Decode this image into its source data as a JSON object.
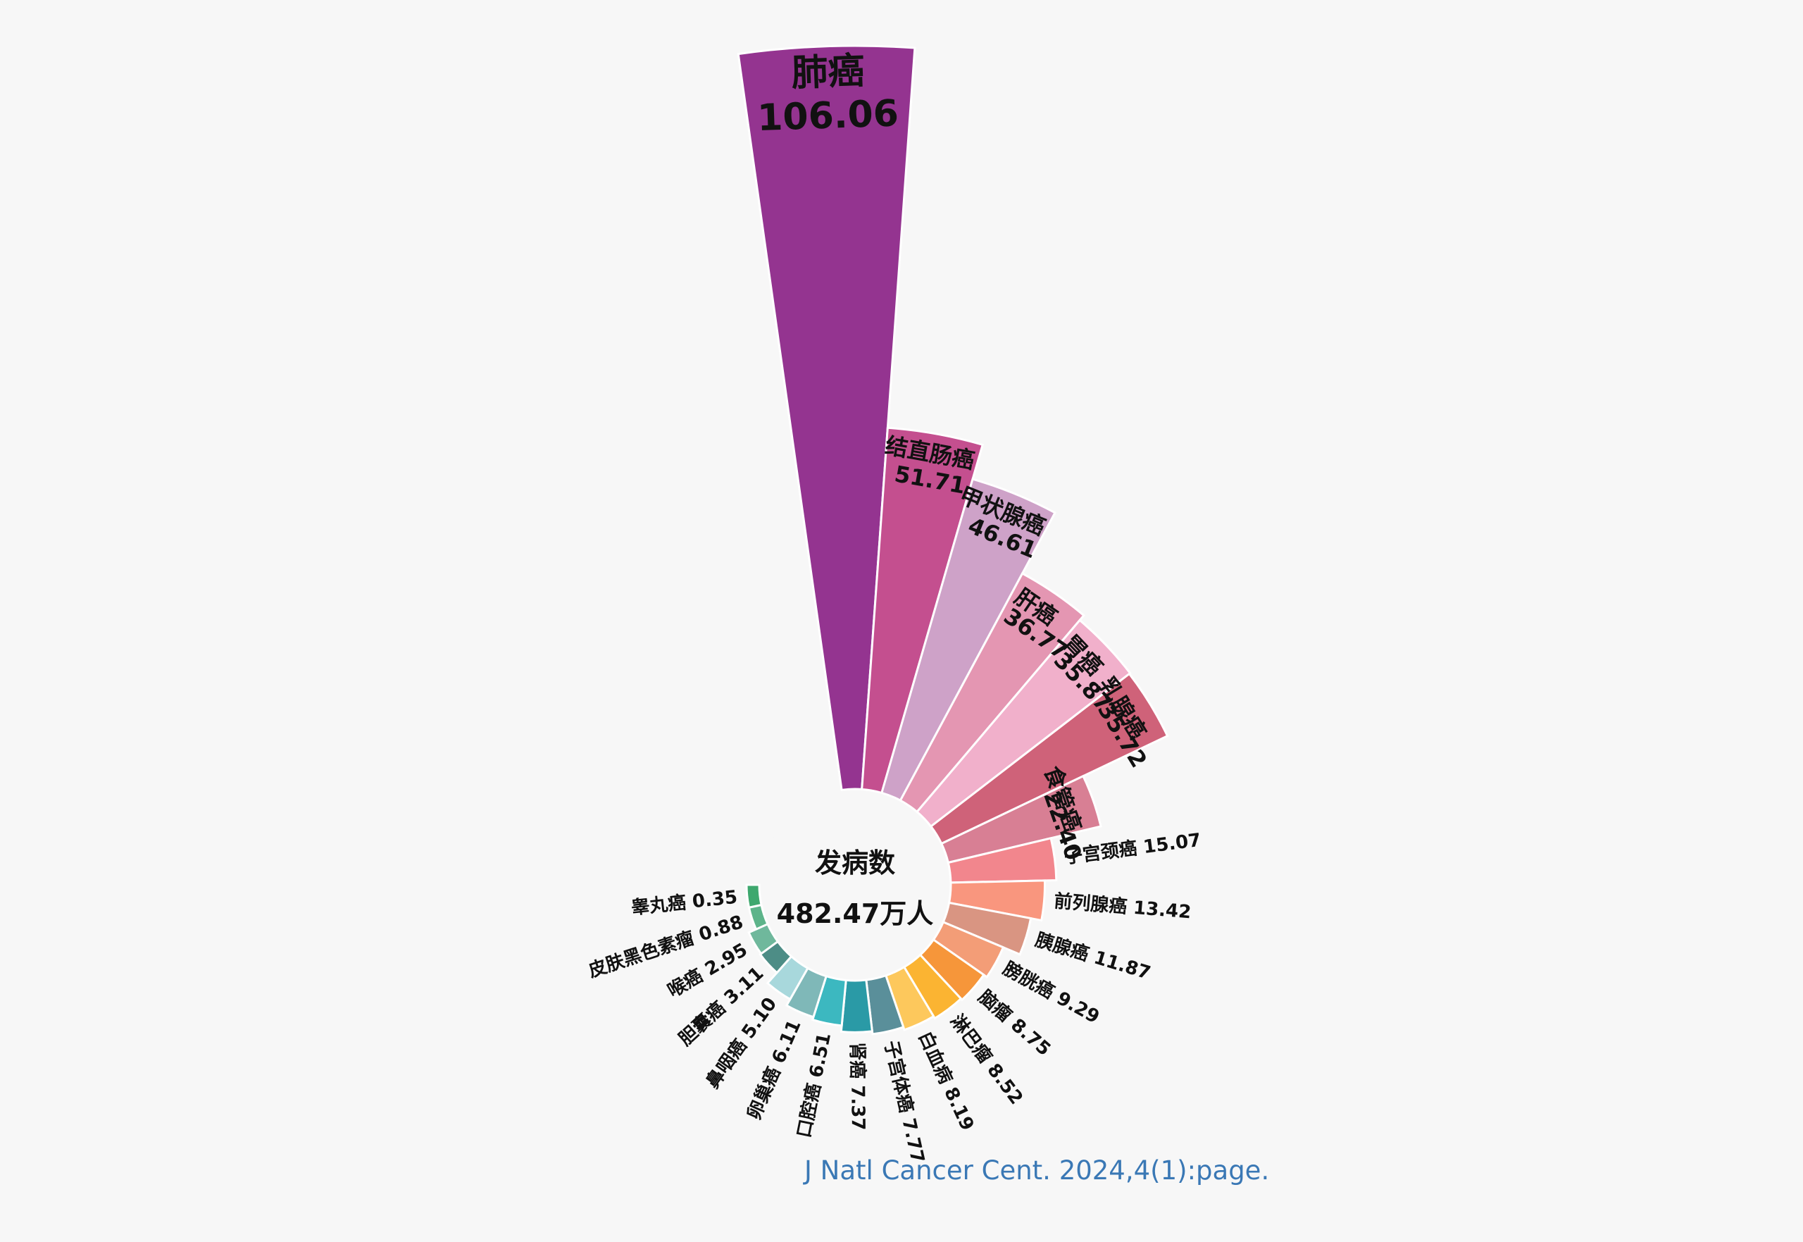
{
  "chart_data": {
    "type": "nightingale_rose",
    "center_label": "发病数",
    "center_value": "482.47万人",
    "unit": "万人",
    "series": [
      {
        "name": "肺癌",
        "value": 106.06,
        "value_label": "106.06",
        "color": "#943490"
      },
      {
        "name": "结直肠癌",
        "value": 51.71,
        "value_label": "51.71",
        "color": "#c44f8f"
      },
      {
        "name": "甲状腺癌",
        "value": 46.61,
        "value_label": "46.61",
        "color": "#cea2c8"
      },
      {
        "name": "肝癌",
        "value": 36.77,
        "value_label": "36.77",
        "color": "#e496b2"
      },
      {
        "name": "胃癌",
        "value": 35.87,
        "value_label": "35.87",
        "color": "#f1b0cb"
      },
      {
        "name": "乳腺癌",
        "value": 35.72,
        "value_label": "35.72",
        "color": "#cf6279"
      },
      {
        "name": "食管癌",
        "value": 22.4,
        "value_label": "22.40",
        "color": "#d87f94"
      },
      {
        "name": "子宫颈癌",
        "value": 15.07,
        "value_label": "15.07",
        "color": "#f2868d"
      },
      {
        "name": "前列腺癌",
        "value": 13.42,
        "value_label": "13.42",
        "color": "#f9967e"
      },
      {
        "name": "胰腺癌",
        "value": 11.87,
        "value_label": "11.87",
        "color": "#d99582"
      },
      {
        "name": "膀胱癌",
        "value": 9.29,
        "value_label": "9.29",
        "color": "#f39d77"
      },
      {
        "name": "脑瘤",
        "value": 8.75,
        "value_label": "8.75",
        "color": "#f6963a"
      },
      {
        "name": "淋巴瘤",
        "value": 8.52,
        "value_label": "8.52",
        "color": "#fbb432"
      },
      {
        "name": "白血病",
        "value": 8.19,
        "value_label": "8.19",
        "color": "#fdc85c"
      },
      {
        "name": "子宫体癌",
        "value": 7.77,
        "value_label": "7.77",
        "color": "#5a8f9a"
      },
      {
        "name": "肾癌",
        "value": 7.37,
        "value_label": "7.37",
        "color": "#2a9aa6"
      },
      {
        "name": "口腔癌",
        "value": 6.51,
        "value_label": "6.51",
        "color": "#3cb8c0"
      },
      {
        "name": "卵巢癌",
        "value": 6.11,
        "value_label": "6.11",
        "color": "#7fb8b8"
      },
      {
        "name": "鼻咽癌",
        "value": 5.1,
        "value_label": "5.10",
        "color": "#a8d8dc"
      },
      {
        "name": "胆囊癌",
        "value": 3.11,
        "value_label": "3.11",
        "color": "#4d8d86"
      },
      {
        "name": "喉癌",
        "value": 2.95,
        "value_label": "2.95",
        "color": "#6fb89c"
      },
      {
        "name": "皮肤黑色素瘤",
        "value": 0.88,
        "value_label": "0.88",
        "color": "#5db48a"
      },
      {
        "name": "睾丸癌",
        "value": 0.35,
        "value_label": "0.35",
        "color": "#3ea86e"
      }
    ]
  },
  "citation": "J Natl Cancer Cent. 2024,4(1):page."
}
